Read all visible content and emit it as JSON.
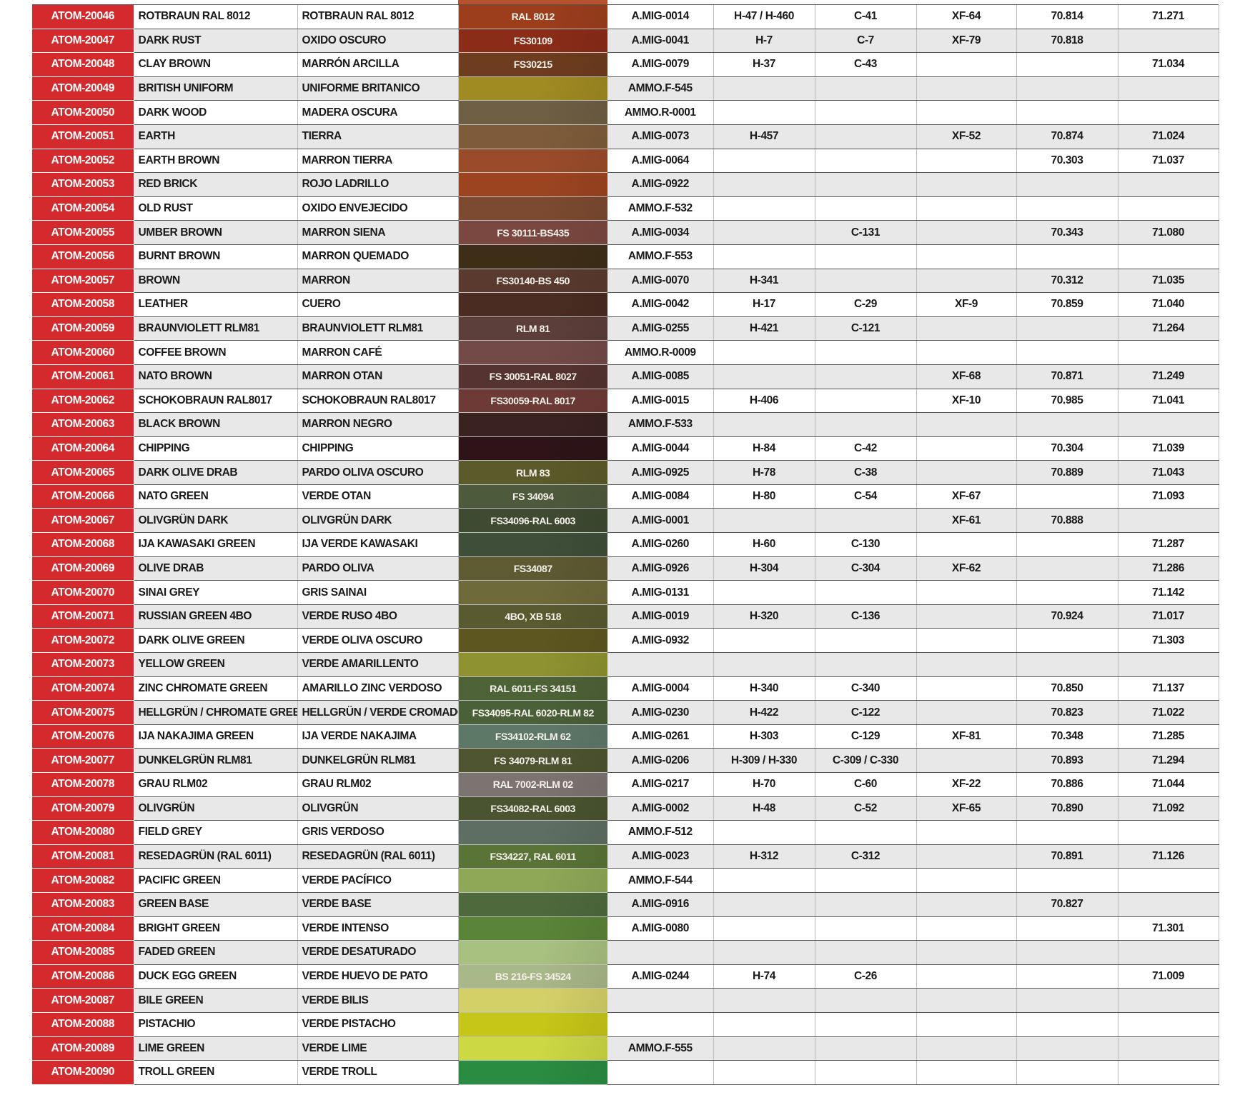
{
  "columns": [
    "code",
    "name_en",
    "name_es",
    "reference",
    "mig",
    "h",
    "c",
    "xf",
    "v70",
    "v71",
    "swatch_color"
  ],
  "rows": [
    [
      "ATOM-20046",
      "ROTBRAUN RAL 8012",
      "ROTBRAUN RAL 8012",
      "RAL 8012",
      "A.MIG-0014",
      "H-47 / H-460",
      "C-41",
      "XF-64",
      "70.814",
      "71.271",
      "#9c3e1c"
    ],
    [
      "ATOM-20047",
      "DARK RUST",
      "OXIDO OSCURO",
      "FS30109",
      "A.MIG-0041",
      "H-7",
      "C-7",
      "XF-79",
      "70.818",
      "",
      "#8a2c18"
    ],
    [
      "ATOM-20048",
      "CLAY BROWN",
      "MARRÓN ARCILLA",
      "FS30215",
      "A.MIG-0079",
      "H-37",
      "C-43",
      "",
      "",
      "71.034",
      "#6e3c1e"
    ],
    [
      "ATOM-20049",
      "BRITISH UNIFORM",
      "UNIFORME BRITANICO",
      "",
      "AMMO.F-545",
      "",
      "",
      "",
      "",
      "",
      "#a08a22"
    ],
    [
      "ATOM-20050",
      "DARK WOOD",
      "MADERA OSCURA",
      "",
      "AMMO.R-0001",
      "",
      "",
      "",
      "",
      "",
      "#6e5e44"
    ],
    [
      "ATOM-20051",
      "EARTH",
      "TIERRA",
      "",
      "A.MIG-0073",
      "H-457",
      "",
      "XF-52",
      "70.874",
      "71.024",
      "#7e5c3a"
    ],
    [
      "ATOM-20052",
      "EARTH BROWN",
      "MARRON TIERRA",
      "",
      "A.MIG-0064",
      "",
      "",
      "",
      "70.303",
      "71.037",
      "#9a4c2a"
    ],
    [
      "ATOM-20053",
      "RED BRICK",
      "ROJO LADRILLO",
      "",
      "A.MIG-0922",
      "",
      "",
      "",
      "",
      "",
      "#9c4420"
    ],
    [
      "ATOM-20054",
      "OLD RUST",
      "OXIDO ENVEJECIDO",
      "",
      "AMMO.F-532",
      "",
      "",
      "",
      "",
      "",
      "#7c4a30"
    ],
    [
      "ATOM-20055",
      "UMBER BROWN",
      "MARRON SIENA",
      "FS 30111-BS435",
      "A.MIG-0034",
      "",
      "C-131",
      "",
      "70.343",
      "71.080",
      "#7a4840"
    ],
    [
      "ATOM-20056",
      "BURNT BROWN",
      "MARRON QUEMADO",
      "",
      "AMMO.F-553",
      "",
      "",
      "",
      "",
      "",
      "#3e2e18"
    ],
    [
      "ATOM-20057",
      "BROWN",
      "MARRON",
      "FS30140-BS 450",
      "A.MIG-0070",
      "H-341",
      "",
      "",
      "70.312",
      "71.035",
      "#5a3a2e"
    ],
    [
      "ATOM-20058",
      "LEATHER",
      "CUERO",
      "",
      "A.MIG-0042",
      "H-17",
      "C-29",
      "XF-9",
      "70.859",
      "71.040",
      "#4a2c22"
    ],
    [
      "ATOM-20059",
      "BRAUNVIOLETT RLM81",
      "BRAUNVIOLETT RLM81",
      "RLM 81",
      "A.MIG-0255",
      "H-421",
      "C-121",
      "",
      "",
      "71.264",
      "#5c3e3a"
    ],
    [
      "ATOM-20060",
      "COFFEE BROWN",
      "MARRON CAFÉ",
      "",
      "AMMO.R-0009",
      "",
      "",
      "",
      "",
      "",
      "#744a48"
    ],
    [
      "ATOM-20061",
      "NATO BROWN",
      "MARRON OTAN",
      "FS 30051-RAL 8027",
      "A.MIG-0085",
      "",
      "",
      "XF-68",
      "70.871",
      "71.249",
      "#553330"
    ],
    [
      "ATOM-20062",
      "SCHOKOBRAUN RAL8017",
      "SCHOKOBRAUN RAL8017",
      "FS30059-RAL 8017",
      "A.MIG-0015",
      "H-406",
      "",
      "XF-10",
      "70.985",
      "71.041",
      "#6e3a36"
    ],
    [
      "ATOM-20063",
      "BLACK BROWN",
      "MARRON NEGRO",
      "",
      "AMMO.F-533",
      "",
      "",
      "",
      "",
      "",
      "#3a2220"
    ],
    [
      "ATOM-20064",
      "CHIPPING",
      "CHIPPING",
      "",
      "A.MIG-0044",
      "H-84",
      "C-42",
      "",
      "70.304",
      "71.039",
      "#2e1418"
    ],
    [
      "ATOM-20065",
      "DARK OLIVE DRAB",
      "PARDO OLIVA OSCURO",
      "RLM 83",
      "A.MIG-0925",
      "H-78",
      "C-38",
      "",
      "70.889",
      "71.043",
      "#5a5a2a"
    ],
    [
      "ATOM-20066",
      "NATO GREEN",
      "VERDE OTAN",
      "FS 34094",
      "A.MIG-0084",
      "H-80",
      "C-54",
      "XF-67",
      "",
      "71.093",
      "#4e5a3c"
    ],
    [
      "ATOM-20067",
      "OLIVGRÜN DARK",
      "OLIVGRÜN DARK",
      "FS34096-RAL 6003",
      "A.MIG-0001",
      "",
      "",
      "XF-61",
      "70.888",
      "",
      "#3e4a32"
    ],
    [
      "ATOM-20068",
      "IJA KAWASAKI GREEN",
      "IJA VERDE KAWASAKI",
      "",
      "A.MIG-0260",
      "H-60",
      "C-130",
      "",
      "",
      "71.287",
      "#3e4e38"
    ],
    [
      "ATOM-20069",
      "OLIVE DRAB",
      "PARDO OLIVA",
      "FS34087",
      "A.MIG-0926",
      "H-304",
      "C-304",
      "XF-62",
      "",
      "71.286",
      "#5e5a32"
    ],
    [
      "ATOM-20070",
      "SINAI GREY",
      "GRIS SAINAI",
      "",
      "A.MIG-0131",
      "",
      "",
      "",
      "",
      "71.142",
      "#6e6a3a"
    ],
    [
      "ATOM-20071",
      "RUSSIAN GREEN 4BO",
      "VERDE RUSO 4BO",
      "4BO, XB 518",
      "A.MIG-0019",
      "H-320",
      "C-136",
      "",
      "70.924",
      "71.017",
      "#5a5a30"
    ],
    [
      "ATOM-20072",
      "DARK OLIVE GREEN",
      "VERDE OLIVA OSCURO",
      "",
      "A.MIG-0932",
      "",
      "",
      "",
      "",
      "71.303",
      "#5e5620"
    ],
    [
      "ATOM-20073",
      "YELLOW GREEN",
      "VERDE AMARILLENTO",
      "",
      "",
      "",
      "",
      "",
      "",
      "",
      "#8e9230"
    ],
    [
      "ATOM-20074",
      "ZINC CHROMATE GREEN",
      "AMARILLO ZINC VERDOSO",
      "RAL 6011-FS 34151",
      "A.MIG-0004",
      "H-340",
      "C-340",
      "",
      "70.850",
      "71.137",
      "#4e6238"
    ],
    [
      "ATOM-20075",
      "HELLGRÜN / CHROMATE GREEN",
      "HELLGRÜN / VERDE CROMADO",
      "FS34095-RAL 6020-RLM 82",
      "A.MIG-0230",
      "H-422",
      "C-122",
      "",
      "70.823",
      "71.022",
      "#4a6038"
    ],
    [
      "ATOM-20076",
      "IJA NAKAJIMA GREEN",
      "IJA VERDE NAKAJIMA",
      "FS34102-RLM 62",
      "A.MIG-0261",
      "H-303",
      "C-129",
      "XF-81",
      "70.348",
      "71.285",
      "#5e7868"
    ],
    [
      "ATOM-20077",
      "DUNKELGRÜN RLM81",
      "DUNKELGRÜN RLM81",
      "FS 34079-RLM 81",
      "A.MIG-0206",
      "H-309 / H-330",
      "C-309 / C-330",
      "",
      "70.893",
      "71.294",
      "#4e5430"
    ],
    [
      "ATOM-20078",
      "GRAU RLM02",
      "GRAU RLM02",
      "RAL 7002-RLM 02",
      "A.MIG-0217",
      "H-70",
      "C-60",
      "XF-22",
      "70.886",
      "71.044",
      "#7c7470"
    ],
    [
      "ATOM-20079",
      "OLIVGRÜN",
      "OLIVGRÜN",
      "FS34082-RAL 6003",
      "A.MIG-0002",
      "H-48",
      "C-52",
      "XF-65",
      "70.890",
      "71.092",
      "#4a5430"
    ],
    [
      "ATOM-20080",
      "FIELD GREY",
      "GRIS VERDOSO",
      "",
      "AMMO.F-512",
      "",
      "",
      "",
      "",
      "",
      "#5e6e62"
    ],
    [
      "ATOM-20081",
      "RESEDAGRÜN (RAL 6011)",
      "RESEDAGRÜN (RAL 6011)",
      "FS34227, RAL 6011",
      "A.MIG-0023",
      "H-312",
      "C-312",
      "",
      "70.891",
      "71.126",
      "#5a7438"
    ],
    [
      "ATOM-20082",
      "PACIFIC GREEN",
      "VERDE PACÍFICO",
      "",
      "AMMO.F-544",
      "",
      "",
      "",
      "",
      "",
      "#8ea858"
    ],
    [
      "ATOM-20083",
      "GREEN BASE",
      "VERDE BASE",
      "",
      "A.MIG-0916",
      "",
      "",
      "",
      "70.827",
      "",
      "#4e6a3c"
    ],
    [
      "ATOM-20084",
      "BRIGHT GREEN",
      "VERDE INTENSO",
      "",
      "A.MIG-0080",
      "",
      "",
      "",
      "",
      "71.301",
      "#5a8438"
    ],
    [
      "ATOM-20085",
      "FADED GREEN",
      "VERDE DESATURADO",
      "",
      "",
      "",
      "",
      "",
      "",
      "",
      "#a8c080"
    ],
    [
      "ATOM-20086",
      "DUCK EGG GREEN",
      "VERDE HUEVO DE PATO",
      "BS 216-FS 34524",
      "A.MIG-0244",
      "H-74",
      "C-26",
      "",
      "",
      "71.009",
      "#a8b888"
    ],
    [
      "ATOM-20087",
      "BILE GREEN",
      "VERDE BILIS",
      "",
      "",
      "",
      "",
      "",
      "",
      "",
      "#d4d068"
    ],
    [
      "ATOM-20088",
      "PISTACHIO",
      "VERDE PISTACHO",
      "",
      "",
      "",
      "",
      "",
      "",
      "",
      "#c6c618"
    ],
    [
      "ATOM-20089",
      "LIME GREEN",
      "VERDE LIME",
      "",
      "AMMO.F-555",
      "",
      "",
      "",
      "",
      "",
      "#ccd844"
    ],
    [
      "ATOM-20090",
      "TROLL GREEN",
      "VERDE TROLL",
      "",
      "",
      "",
      "",
      "",
      "",
      "",
      "#2a8c40"
    ]
  ]
}
